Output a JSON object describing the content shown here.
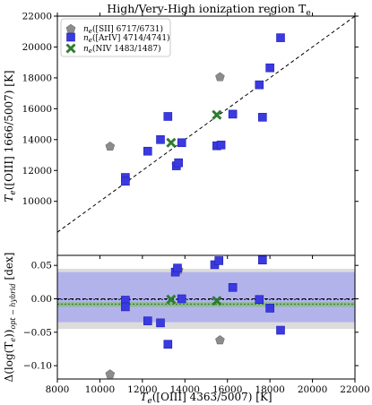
{
  "chart_data": [
    {
      "type": "scatter",
      "title": "High/Very-High ionization region T_e",
      "xlabel": "",
      "ylabel": "T_e([OIII] 1666/5007) [K]",
      "xlim": [
        8000,
        22000
      ],
      "ylim": [
        6500,
        22000
      ],
      "x_ticks": [
        "8000",
        "10000",
        "12000",
        "14000",
        "16000",
        "18000",
        "20000",
        "22000"
      ],
      "y_ticks": [
        "10000",
        "12000",
        "14000",
        "16000",
        "18000",
        "20000",
        "22000"
      ],
      "reference_line": "1:1 (dashed)",
      "legend_position": "top-left",
      "series": [
        {
          "name": "n_e([SII] 6717/6731)",
          "marker": "pentagon",
          "color": "#8c8c8c",
          "points": [
            [
              10480,
              13550
            ],
            [
              13600,
              12350
            ],
            [
              15650,
              18050
            ]
          ]
        },
        {
          "name": "n_e([ArIV] 4714/4741)",
          "marker": "square",
          "color": "#3a3ae0",
          "points": [
            [
              11200,
              11550
            ],
            [
              11200,
              11300
            ],
            [
              12250,
              13250
            ],
            [
              12850,
              14000
            ],
            [
              13200,
              15500
            ],
            [
              13600,
              12300
            ],
            [
              13700,
              12500
            ],
            [
              13850,
              13800
            ],
            [
              15500,
              13600
            ],
            [
              15700,
              13650
            ],
            [
              16250,
              15650
            ],
            [
              17500,
              17550
            ],
            [
              17650,
              15450
            ],
            [
              18000,
              18650
            ],
            [
              18500,
              20600
            ]
          ]
        },
        {
          "name": "n_e(NIV 1483/1487)",
          "marker": "x",
          "color": "#2e7d2e",
          "points": [
            [
              13350,
              13800
            ],
            [
              15500,
              15600
            ]
          ]
        }
      ]
    },
    {
      "type": "scatter",
      "title": "",
      "xlabel": "T_e([OIII] 4363/5007) [K]",
      "ylabel": "Δ(log(T_e))_opt − hybrid [dex]",
      "xlim": [
        8000,
        22000
      ],
      "ylim": [
        -0.12,
        0.065
      ],
      "x_ticks": [
        "8000",
        "10000",
        "12000",
        "14000",
        "16000",
        "18000",
        "20000",
        "22000"
      ],
      "y_ticks": [
        "0.05",
        "0.00",
        "−0.05",
        "−0.10"
      ],
      "bands": {
        "grey": [
          -0.045,
          0.045
        ],
        "blue": [
          -0.035,
          0.04
        ],
        "green": [
          -0.012,
          -0.005
        ]
      },
      "lines": {
        "zero_dashed": 0.0,
        "blue_mean": -0.001,
        "green_mean": -0.008
      },
      "series": [
        {
          "name": "n_e([SII] 6717/6731)",
          "marker": "pentagon",
          "color": "#8c8c8c",
          "points": [
            [
              10480,
              -0.113
            ],
            [
              13700,
              0.043
            ],
            [
              15650,
              -0.062
            ]
          ]
        },
        {
          "name": "n_e([ArIV] 4714/4741)",
          "marker": "square",
          "color": "#3a3ae0",
          "points": [
            [
              11200,
              -0.002
            ],
            [
              11200,
              -0.012
            ],
            [
              12250,
              -0.033
            ],
            [
              12850,
              -0.036
            ],
            [
              13200,
              -0.068
            ],
            [
              13550,
              0.04
            ],
            [
              13650,
              0.046
            ],
            [
              13850,
              0.0
            ],
            [
              15400,
              0.051
            ],
            [
              15600,
              0.057
            ],
            [
              16250,
              0.017
            ],
            [
              17500,
              -0.001
            ],
            [
              17650,
              0.058
            ],
            [
              18000,
              -0.014
            ],
            [
              18500,
              -0.047
            ]
          ]
        },
        {
          "name": "n_e(NIV 1483/1487)",
          "marker": "x",
          "color": "#2e7d2e",
          "points": [
            [
              13350,
              -0.001
            ],
            [
              15500,
              -0.003
            ]
          ]
        }
      ]
    }
  ],
  "legend": {
    "prefix": "n",
    "sub": "e",
    "entries": [
      "([SII] 6717/6731)",
      "([ArIV] 4714/4741)",
      "(NIV 1483/1487)"
    ]
  },
  "text": {
    "title": "High/Very-High ionization region T",
    "title_sub": "e",
    "top_ylabel_a": "T",
    "top_ylabel_sub": "e",
    "top_ylabel_b": "([OIII] 1666/5007) [K]",
    "bottom_xlabel_a": "T",
    "bottom_xlabel_sub": "e",
    "bottom_xlabel_b": "([OIII] 4363/5007) [K]",
    "bottom_ylabel_a": "Δ(log(T",
    "bottom_ylabel_sub1": "e",
    "bottom_ylabel_b": "))",
    "bottom_ylabel_sub2": "opt − hybrid",
    "bottom_ylabel_c": " [dex]"
  }
}
